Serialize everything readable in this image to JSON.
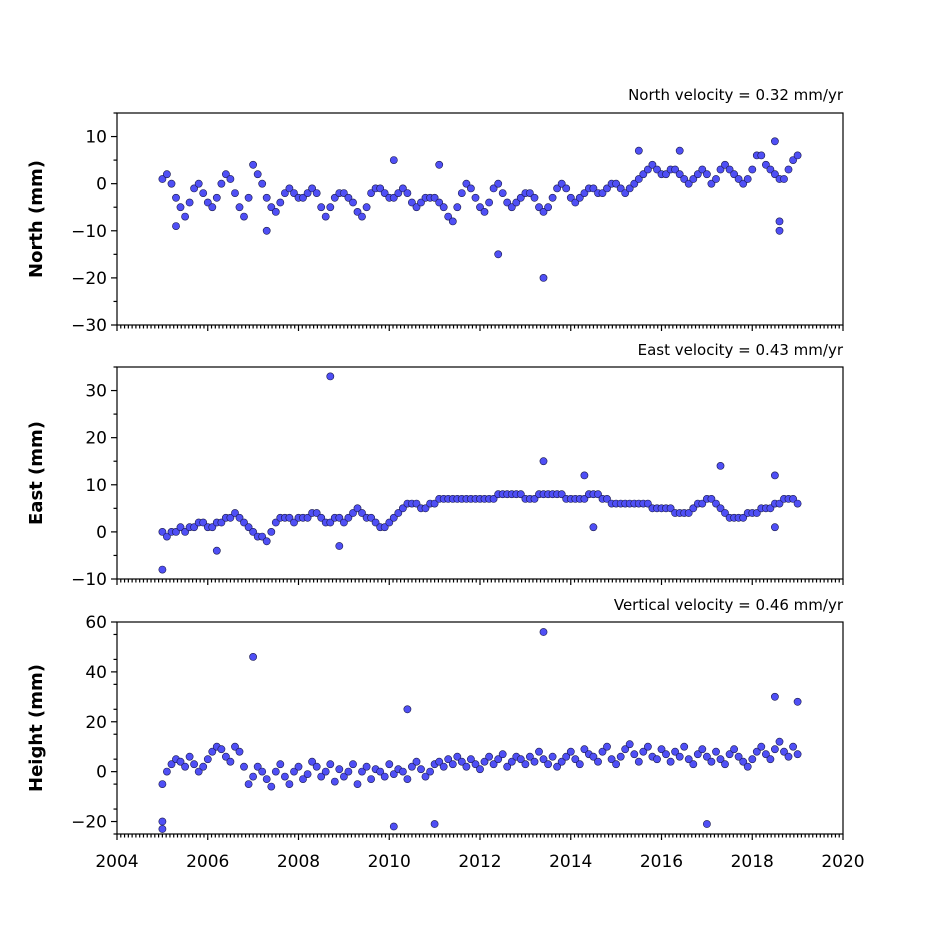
{
  "chart_data": [
    {
      "type": "scatter",
      "title": "North velocity = 0.32 mm/yr",
      "xlabel": "",
      "ylabel": "North (mm)",
      "xlim": [
        2004,
        2020
      ],
      "ylim": [
        -30,
        15
      ],
      "yticks": [
        -30,
        -20,
        -10,
        0,
        10
      ],
      "yticklabels": [
        "−30",
        "−20",
        "−10",
        "0",
        "10"
      ],
      "marker_color": "#4f4ff5",
      "velocity_mm_per_yr": 0.32,
      "series": [
        {
          "x": [
            2005.0,
            2005.1,
            2005.2,
            2005.3,
            2005.4,
            2005.5,
            2005.6,
            2005.7,
            2005.8,
            2005.9,
            2006.0,
            2006.1,
            2006.2,
            2006.3,
            2006.4,
            2006.5,
            2006.6,
            2006.7,
            2006.8,
            2006.9,
            2007.0,
            2007.1,
            2007.2,
            2007.3,
            2007.4,
            2007.5,
            2007.6,
            2007.7,
            2007.8,
            2007.9,
            2008.0,
            2008.1,
            2008.2,
            2008.3,
            2008.4,
            2008.5,
            2008.6,
            2008.7,
            2008.8,
            2008.9,
            2009.0,
            2009.1,
            2009.2,
            2009.3,
            2009.4,
            2009.5,
            2009.6,
            2009.7,
            2009.8,
            2009.9,
            2010.0,
            2010.1,
            2010.2,
            2010.3,
            2010.4,
            2010.5,
            2010.6,
            2010.7,
            2010.8,
            2010.9,
            2011.0,
            2011.1,
            2011.2,
            2011.3,
            2011.4,
            2011.5,
            2011.6,
            2011.7,
            2011.8,
            2011.9,
            2012.0,
            2012.1,
            2012.2,
            2012.3,
            2012.4,
            2012.5,
            2012.6,
            2012.7,
            2012.8,
            2012.9,
            2013.0,
            2013.1,
            2013.2,
            2013.3,
            2013.4,
            2013.5,
            2013.6,
            2013.7,
            2013.8,
            2013.9,
            2014.0,
            2014.1,
            2014.2,
            2014.3,
            2014.4,
            2014.5,
            2014.6,
            2014.7,
            2014.8,
            2014.9,
            2015.0,
            2015.1,
            2015.2,
            2015.3,
            2015.4,
            2015.5,
            2015.6,
            2015.7,
            2015.8,
            2015.9,
            2016.0,
            2016.1,
            2016.2,
            2016.3,
            2016.4,
            2016.5,
            2016.6,
            2016.7,
            2016.8,
            2016.9,
            2017.0,
            2017.1,
            2017.2,
            2017.3,
            2017.4,
            2017.5,
            2017.6,
            2017.7,
            2017.8,
            2017.9,
            2018.0,
            2018.1,
            2018.2,
            2018.3,
            2018.4,
            2018.5,
            2018.6,
            2018.7,
            2018.8,
            2018.9,
            2019.0,
            2005.3,
            2007.3,
            2010.1,
            2011.1,
            2012.4,
            2013.4,
            2015.5,
            2016.4,
            2018.5,
            2018.6,
            2018.6
          ],
          "y": [
            1,
            2,
            0,
            -3,
            -5,
            -7,
            -4,
            -1,
            0,
            -2,
            -4,
            -5,
            -3,
            0,
            2,
            1,
            -2,
            -5,
            -7,
            -3,
            4,
            2,
            0,
            -3,
            -5,
            -6,
            -4,
            -2,
            -1,
            -2,
            -3,
            -3,
            -2,
            -1,
            -2,
            -5,
            -7,
            -5,
            -3,
            -2,
            -2,
            -3,
            -4,
            -6,
            -7,
            -5,
            -2,
            -1,
            -1,
            -2,
            -3,
            -3,
            -2,
            -1,
            -2,
            -4,
            -5,
            -4,
            -3,
            -3,
            -3,
            -4,
            -5,
            -7,
            -8,
            -5,
            -2,
            0,
            -1,
            -3,
            -5,
            -6,
            -4,
            -1,
            0,
            -2,
            -4,
            -5,
            -4,
            -3,
            -2,
            -2,
            -3,
            -5,
            -6,
            -5,
            -3,
            -1,
            0,
            -1,
            -3,
            -4,
            -3,
            -2,
            -1,
            -1,
            -2,
            -2,
            -1,
            0,
            0,
            -1,
            -2,
            -1,
            0,
            1,
            2,
            3,
            4,
            3,
            2,
            2,
            3,
            3,
            2,
            1,
            0,
            1,
            2,
            3,
            2,
            0,
            1,
            3,
            4,
            3,
            2,
            1,
            0,
            1,
            3,
            6,
            6,
            4,
            3,
            2,
            1,
            1,
            3,
            5,
            6,
            -9,
            -10,
            5,
            4,
            -15,
            -20,
            7,
            7,
            9,
            -8,
            -10
          ]
        }
      ]
    },
    {
      "type": "scatter",
      "title": "East velocity = 0.43 mm/yr",
      "xlabel": "",
      "ylabel": "East (mm)",
      "xlim": [
        2004,
        2020
      ],
      "ylim": [
        -10,
        35
      ],
      "yticks": [
        -10,
        0,
        10,
        20,
        30
      ],
      "yticklabels": [
        "−10",
        "0",
        "10",
        "20",
        "30"
      ],
      "marker_color": "#4f4ff5",
      "velocity_mm_per_yr": 0.43,
      "series": [
        {
          "x": [
            2005.0,
            2005.1,
            2005.2,
            2005.3,
            2005.4,
            2005.5,
            2005.6,
            2005.7,
            2005.8,
            2005.9,
            2006.0,
            2006.1,
            2006.2,
            2006.3,
            2006.4,
            2006.5,
            2006.6,
            2006.7,
            2006.8,
            2006.9,
            2007.0,
            2007.1,
            2007.2,
            2007.3,
            2007.4,
            2007.5,
            2007.6,
            2007.7,
            2007.8,
            2007.9,
            2008.0,
            2008.1,
            2008.2,
            2008.3,
            2008.4,
            2008.5,
            2008.6,
            2008.7,
            2008.8,
            2008.9,
            2009.0,
            2009.1,
            2009.2,
            2009.3,
            2009.4,
            2009.5,
            2009.6,
            2009.7,
            2009.8,
            2009.9,
            2010.0,
            2010.1,
            2010.2,
            2010.3,
            2010.4,
            2010.5,
            2010.6,
            2010.7,
            2010.8,
            2010.9,
            2011.0,
            2011.1,
            2011.2,
            2011.3,
            2011.4,
            2011.5,
            2011.6,
            2011.7,
            2011.8,
            2011.9,
            2012.0,
            2012.1,
            2012.2,
            2012.3,
            2012.4,
            2012.5,
            2012.6,
            2012.7,
            2012.8,
            2012.9,
            2013.0,
            2013.1,
            2013.2,
            2013.3,
            2013.4,
            2013.5,
            2013.6,
            2013.7,
            2013.8,
            2013.9,
            2014.0,
            2014.1,
            2014.2,
            2014.3,
            2014.4,
            2014.5,
            2014.6,
            2014.7,
            2014.8,
            2014.9,
            2015.0,
            2015.1,
            2015.2,
            2015.3,
            2015.4,
            2015.5,
            2015.6,
            2015.7,
            2015.8,
            2015.9,
            2016.0,
            2016.1,
            2016.2,
            2016.3,
            2016.4,
            2016.5,
            2016.6,
            2016.7,
            2016.8,
            2016.9,
            2017.0,
            2017.1,
            2017.2,
            2017.3,
            2017.4,
            2017.5,
            2017.6,
            2017.7,
            2017.8,
            2017.9,
            2018.0,
            2018.1,
            2018.2,
            2018.3,
            2018.4,
            2018.5,
            2018.6,
            2018.7,
            2018.8,
            2018.9,
            2019.0,
            2005.0,
            2006.2,
            2008.7,
            2008.9,
            2013.4,
            2014.3,
            2017.3,
            2018.5,
            2018.5,
            2014.5
          ],
          "y": [
            0,
            -1,
            0,
            0,
            1,
            0,
            1,
            1,
            2,
            2,
            1,
            1,
            2,
            2,
            3,
            3,
            4,
            3,
            2,
            1,
            0,
            -1,
            -1,
            -2,
            0,
            2,
            3,
            3,
            3,
            2,
            3,
            3,
            3,
            4,
            4,
            3,
            2,
            2,
            3,
            3,
            2,
            3,
            4,
            5,
            4,
            3,
            3,
            2,
            1,
            1,
            2,
            3,
            4,
            5,
            6,
            6,
            6,
            5,
            5,
            6,
            6,
            7,
            7,
            7,
            7,
            7,
            7,
            7,
            7,
            7,
            7,
            7,
            7,
            7,
            8,
            8,
            8,
            8,
            8,
            8,
            7,
            7,
            7,
            8,
            8,
            8,
            8,
            8,
            8,
            7,
            7,
            7,
            7,
            7,
            8,
            8,
            8,
            7,
            7,
            6,
            6,
            6,
            6,
            6,
            6,
            6,
            6,
            6,
            5,
            5,
            5,
            5,
            5,
            4,
            4,
            4,
            4,
            5,
            6,
            6,
            7,
            7,
            6,
            5,
            4,
            3,
            3,
            3,
            3,
            4,
            4,
            4,
            5,
            5,
            5,
            6,
            6,
            7,
            7,
            7,
            6,
            -8,
            -4,
            33,
            -3,
            15,
            12,
            14,
            12,
            1,
            1
          ]
        }
      ]
    },
    {
      "type": "scatter",
      "title": "Vertical velocity = 0.46 mm/yr",
      "xlabel": "",
      "ylabel": "Height (mm)",
      "xlim": [
        2004,
        2020
      ],
      "ylim": [
        -25,
        60
      ],
      "yticks": [
        -20,
        0,
        20,
        40,
        60
      ],
      "yticklabels": [
        "−20",
        "0",
        "20",
        "40",
        "60"
      ],
      "xticks": [
        2004,
        2006,
        2008,
        2010,
        2012,
        2014,
        2016,
        2018,
        2020
      ],
      "xticklabels": [
        "2004",
        "2006",
        "2008",
        "2010",
        "2012",
        "2014",
        "2016",
        "2018",
        "2020"
      ],
      "marker_color": "#4f4ff5",
      "velocity_mm_per_yr": 0.46,
      "series": [
        {
          "x": [
            2005.0,
            2005.1,
            2005.2,
            2005.3,
            2005.4,
            2005.5,
            2005.6,
            2005.7,
            2005.8,
            2005.9,
            2006.0,
            2006.1,
            2006.2,
            2006.3,
            2006.4,
            2006.5,
            2006.6,
            2006.7,
            2006.8,
            2006.9,
            2007.0,
            2007.1,
            2007.2,
            2007.3,
            2007.4,
            2007.5,
            2007.6,
            2007.7,
            2007.8,
            2007.9,
            2008.0,
            2008.1,
            2008.2,
            2008.3,
            2008.4,
            2008.5,
            2008.6,
            2008.7,
            2008.8,
            2008.9,
            2009.0,
            2009.1,
            2009.2,
            2009.3,
            2009.4,
            2009.5,
            2009.6,
            2009.7,
            2009.8,
            2009.9,
            2010.0,
            2010.1,
            2010.2,
            2010.3,
            2010.4,
            2010.5,
            2010.6,
            2010.7,
            2010.8,
            2010.9,
            2011.0,
            2011.1,
            2011.2,
            2011.3,
            2011.4,
            2011.5,
            2011.6,
            2011.7,
            2011.8,
            2011.9,
            2012.0,
            2012.1,
            2012.2,
            2012.3,
            2012.4,
            2012.5,
            2012.6,
            2012.7,
            2012.8,
            2012.9,
            2013.0,
            2013.1,
            2013.2,
            2013.3,
            2013.4,
            2013.5,
            2013.6,
            2013.7,
            2013.8,
            2013.9,
            2014.0,
            2014.1,
            2014.2,
            2014.3,
            2014.4,
            2014.5,
            2014.6,
            2014.7,
            2014.8,
            2014.9,
            2015.0,
            2015.1,
            2015.2,
            2015.3,
            2015.4,
            2015.5,
            2015.6,
            2015.7,
            2015.8,
            2015.9,
            2016.0,
            2016.1,
            2016.2,
            2016.3,
            2016.4,
            2016.5,
            2016.6,
            2016.7,
            2016.8,
            2016.9,
            2017.0,
            2017.1,
            2017.2,
            2017.3,
            2017.4,
            2017.5,
            2017.6,
            2017.7,
            2017.8,
            2017.9,
            2018.0,
            2018.1,
            2018.2,
            2018.3,
            2018.4,
            2018.5,
            2018.6,
            2018.7,
            2018.8,
            2018.9,
            2019.0,
            2005.0,
            2005.0,
            2007.0,
            2010.4,
            2010.1,
            2011.0,
            2013.4,
            2017.0,
            2018.5,
            2019.0
          ],
          "y": [
            -5,
            0,
            3,
            5,
            4,
            2,
            6,
            3,
            0,
            2,
            5,
            8,
            10,
            9,
            6,
            4,
            10,
            8,
            2,
            -5,
            -2,
            2,
            0,
            -3,
            -6,
            0,
            3,
            -2,
            -5,
            0,
            2,
            -3,
            -1,
            4,
            2,
            -2,
            0,
            3,
            -4,
            1,
            -2,
            0,
            3,
            -5,
            0,
            2,
            -3,
            1,
            0,
            -2,
            3,
            -1,
            1,
            0,
            -3,
            2,
            4,
            1,
            -2,
            0,
            3,
            4,
            2,
            5,
            3,
            6,
            4,
            2,
            5,
            3,
            1,
            4,
            6,
            3,
            5,
            7,
            2,
            4,
            6,
            5,
            3,
            6,
            4,
            8,
            5,
            3,
            6,
            2,
            4,
            6,
            8,
            5,
            3,
            9,
            7,
            6,
            4,
            8,
            10,
            5,
            3,
            6,
            9,
            11,
            7,
            4,
            8,
            10,
            6,
            5,
            9,
            7,
            4,
            8,
            6,
            10,
            5,
            3,
            7,
            9,
            6,
            4,
            8,
            5,
            3,
            7,
            9,
            6,
            4,
            2,
            5,
            8,
            10,
            7,
            5,
            9,
            12,
            8,
            6,
            10,
            7,
            -20,
            -23,
            46,
            25,
            -22,
            -21,
            56,
            -21,
            30,
            28
          ]
        }
      ]
    }
  ]
}
